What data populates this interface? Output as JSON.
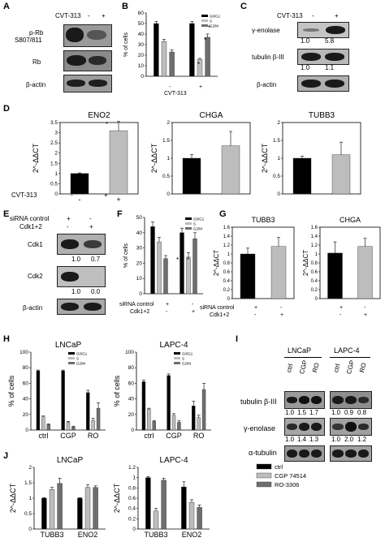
{
  "panels": {
    "A": {
      "letter": "A",
      "treatment": "CVT-313",
      "signs": [
        "-",
        "+"
      ],
      "blots": [
        "p-Rb",
        "S807/811",
        "Rb",
        "β-actin"
      ]
    },
    "B": {
      "letter": "B",
      "treatment": "CVT-313",
      "signs": [
        "-",
        "+"
      ],
      "stars": [
        "*",
        "*",
        "*"
      ]
    },
    "C": {
      "letter": "C",
      "treatment": "CVT-313",
      "signs": [
        "-",
        "+"
      ],
      "blots": [
        "γ-enolase",
        "tubulin β-III",
        "β-actin"
      ],
      "enolase_values": [
        "1.0",
        "5.8"
      ],
      "tubulin_values": [
        "1.0",
        "1.1"
      ]
    },
    "D": {
      "letter": "D",
      "treatment": "CVT-313",
      "signs": [
        "-",
        "+"
      ],
      "star": "*"
    },
    "E": {
      "letter": "E",
      "rows": [
        "siRNA control",
        "Cdk1+2"
      ],
      "row1_signs": [
        "+",
        "-"
      ],
      "row2_signs": [
        "-",
        "+"
      ],
      "blots": [
        "Cdk1",
        "Cdk2",
        "β-actin"
      ],
      "cdk1_values": [
        "1.0",
        "0.7"
      ],
      "cdk2_values": [
        "1.0",
        "0.0"
      ]
    },
    "F": {
      "letter": "F",
      "rows": [
        "siRNA control",
        "Cdk1+2"
      ],
      "row1_signs": [
        "+",
        "-"
      ],
      "row2_signs": [
        "-",
        "+"
      ],
      "stars": [
        "*",
        "*"
      ]
    },
    "G": {
      "letter": "G",
      "rows": [
        "siRNA control",
        "Cdk1+2"
      ],
      "row1_signs": [
        "+",
        "-"
      ],
      "row2_signs": [
        "-",
        "+"
      ]
    },
    "H": {
      "letter": "H"
    },
    "I": {
      "letter": "I",
      "cells": [
        "LNCaP",
        "LAPC-4"
      ],
      "lanes": [
        "ctrl",
        "CGP",
        "RO"
      ],
      "blots": [
        "tubulin β-III",
        "γ-enolase",
        "α-tubulin"
      ],
      "lncap_tubulin": [
        "1.0",
        "1.5",
        "1.7"
      ],
      "lapc_tubulin": [
        "1.0",
        "0.9",
        "0.8"
      ],
      "lncap_enolase": [
        "1.0",
        "1.4",
        "1.3"
      ],
      "lapc_enolase": [
        "1.0",
        "2.0",
        "1.2"
      ]
    },
    "J": {
      "letter": "J"
    }
  },
  "chart_data": [
    {
      "id": "B",
      "type": "bar",
      "ylabel": "% of cells",
      "ylim": [
        0,
        60
      ],
      "yticks": [
        "0",
        "10",
        "20",
        "30",
        "40",
        "50",
        "60"
      ],
      "categories": [
        "-",
        "+"
      ],
      "series": [
        {
          "name": "G0/G1",
          "values": [
            50,
            50
          ],
          "errors": [
            2,
            2
          ]
        },
        {
          "name": "S",
          "values": [
            33,
            16
          ],
          "errors": [
            2,
            1
          ]
        },
        {
          "name": "G2/M",
          "values": [
            23,
            37
          ],
          "errors": [
            2,
            3
          ]
        }
      ],
      "xlabel": "CVT-313",
      "legend": "top-right",
      "colors": [
        "#000000",
        "#bdbdbd",
        "#6e6e6e"
      ]
    },
    {
      "id": "D1",
      "type": "bar",
      "title": "ENO2",
      "ylabel": "2^-ΔΔCT",
      "ylim": [
        0,
        3.5
      ],
      "yticks": [
        "0",
        "0.5",
        "1",
        "1.5",
        "2",
        "2.5",
        "3",
        "3.5"
      ],
      "categories": [
        "-",
        "+"
      ],
      "series": [
        {
          "values": [
            1.0,
            3.1
          ],
          "errors": [
            0.03,
            0.45
          ]
        }
      ],
      "colors": [
        "#000000",
        "#bdbdbd"
      ]
    },
    {
      "id": "D2",
      "type": "bar",
      "title": "CHGA",
      "ylabel": "2^-ΔΔCT",
      "ylim": [
        0,
        2
      ],
      "yticks": [
        "0",
        "0.5",
        "1",
        "1.5",
        "2"
      ],
      "categories": [
        "-",
        "+"
      ],
      "series": [
        {
          "values": [
            1.0,
            1.35
          ],
          "errors": [
            0.1,
            0.4
          ]
        }
      ],
      "colors": [
        "#000000",
        "#bdbdbd"
      ]
    },
    {
      "id": "D3",
      "type": "bar",
      "title": "TUBB3",
      "ylabel": "2^-ΔΔCT",
      "ylim": [
        0,
        2
      ],
      "yticks": [
        "0",
        "0.5",
        "1",
        "1.5",
        "2"
      ],
      "categories": [
        "-",
        "+"
      ],
      "series": [
        {
          "values": [
            1.0,
            1.1
          ],
          "errors": [
            0.06,
            0.35
          ]
        }
      ],
      "colors": [
        "#000000",
        "#bdbdbd"
      ]
    },
    {
      "id": "F",
      "type": "bar",
      "ylabel": "% of cells",
      "ylim": [
        0,
        50
      ],
      "yticks": [
        "0",
        "10",
        "20",
        "30",
        "40",
        "50"
      ],
      "categories": [
        "+ / -",
        "- / +"
      ],
      "series": [
        {
          "name": "G0/G1",
          "values": [
            44,
            40
          ],
          "errors": [
            3,
            3
          ]
        },
        {
          "name": "S",
          "values": [
            34,
            24
          ],
          "errors": [
            3,
            3
          ]
        },
        {
          "name": "G2/M",
          "values": [
            23,
            36
          ],
          "errors": [
            2,
            4
          ]
        }
      ],
      "legend": "top-right",
      "colors": [
        "#000000",
        "#bdbdbd",
        "#6e6e6e"
      ]
    },
    {
      "id": "G1",
      "type": "bar",
      "title": "TUBB3",
      "ylabel": "2^-ΔΔCT",
      "ylim": [
        0,
        1.6
      ],
      "yticks": [
        "0",
        "0.2",
        "0.4",
        "0.6",
        "0.8",
        "1",
        "1.2",
        "1.4",
        "1.6"
      ],
      "categories": [
        "+ / -",
        "- / +"
      ],
      "series": [
        {
          "values": [
            1.0,
            1.17
          ],
          "errors": [
            0.13,
            0.2
          ]
        }
      ],
      "colors": [
        "#000000",
        "#bdbdbd"
      ]
    },
    {
      "id": "G2",
      "type": "bar",
      "title": "CHGA",
      "ylabel": "2^-ΔΔCT",
      "ylim": [
        0,
        1.6
      ],
      "yticks": [
        "0",
        "0.2",
        "0.4",
        "0.6",
        "0.8",
        "1",
        "1.2",
        "1.4",
        "1.6"
      ],
      "categories": [
        "+ / -",
        "- / +"
      ],
      "series": [
        {
          "values": [
            1.02,
            1.17
          ],
          "errors": [
            0.25,
            0.18
          ]
        }
      ],
      "colors": [
        "#000000",
        "#bdbdbd"
      ]
    },
    {
      "id": "H1",
      "type": "bar",
      "title": "LNCaP",
      "ylabel": "% of cells",
      "ylim": [
        0,
        100
      ],
      "yticks": [
        "0",
        "20",
        "40",
        "60",
        "80",
        "100"
      ],
      "categories": [
        "ctrl",
        "CGP",
        "RO"
      ],
      "series": [
        {
          "name": "G0/G1",
          "values": [
            76,
            76,
            48
          ],
          "errors": [
            1,
            1,
            3
          ]
        },
        {
          "name": "S",
          "values": [
            17,
            10,
            12
          ],
          "errors": [
            1,
            1,
            3
          ]
        },
        {
          "name": "G2/M",
          "values": [
            7,
            4,
            28
          ],
          "errors": [
            1,
            1,
            7
          ]
        }
      ],
      "legend": "top-right",
      "colors": [
        "#000000",
        "#bdbdbd",
        "#6e6e6e"
      ]
    },
    {
      "id": "H2",
      "type": "bar",
      "title": "LAPC-4",
      "ylabel": "% of cells",
      "ylim": [
        0,
        100
      ],
      "yticks": [
        "0",
        "20",
        "40",
        "60",
        "80",
        "100"
      ],
      "categories": [
        "ctrl",
        "CGP",
        "RO"
      ],
      "series": [
        {
          "name": "G0/G1",
          "values": [
            62,
            70,
            31
          ],
          "errors": [
            2,
            2,
            6
          ]
        },
        {
          "name": "S",
          "values": [
            27,
            19,
            16
          ],
          "errors": [
            1,
            2,
            3
          ]
        },
        {
          "name": "G2/M",
          "values": [
            11,
            10,
            52
          ],
          "errors": [
            1,
            2,
            8
          ]
        }
      ],
      "legend": "top-right",
      "colors": [
        "#000000",
        "#bdbdbd",
        "#6e6e6e"
      ]
    },
    {
      "id": "J1",
      "type": "bar",
      "title": "LNCaP",
      "ylabel": "2^-ΔΔCT",
      "ylim": [
        0,
        2
      ],
      "yticks": [
        "0",
        "0.5",
        "1",
        "1.5",
        "2"
      ],
      "categories": [
        "TUBB3",
        "ENO2"
      ],
      "series": [
        {
          "name": "ctrl",
          "values": [
            1.0,
            1.0
          ],
          "errors": [
            0.02,
            0.02
          ]
        },
        {
          "name": "CGP 74514",
          "values": [
            1.28,
            1.35
          ],
          "errors": [
            0.07,
            0.08
          ]
        },
        {
          "name": "RO-3306",
          "values": [
            1.48,
            1.35
          ],
          "errors": [
            0.17,
            0.05
          ]
        }
      ],
      "colors": [
        "#000000",
        "#bdbdbd",
        "#6e6e6e"
      ]
    },
    {
      "id": "J2",
      "type": "bar",
      "title": "LAPC-4",
      "ylabel": "2^-ΔΔCT",
      "ylim": [
        0,
        1.2
      ],
      "yticks": [
        "0",
        "0.2",
        "0.4",
        "0.6",
        "0.8",
        "1",
        "1.2"
      ],
      "categories": [
        "TUBB3",
        "ENO2"
      ],
      "series": [
        {
          "name": "ctrl",
          "values": [
            1.0,
            0.82
          ],
          "errors": [
            0.02,
            0.1
          ]
        },
        {
          "name": "CGP 74514",
          "values": [
            0.35,
            0.52
          ],
          "errors": [
            0.05,
            0.05
          ]
        },
        {
          "name": "RO-3306",
          "values": [
            0.95,
            0.42
          ],
          "errors": [
            0.04,
            0.05
          ]
        }
      ],
      "legend": "right",
      "colors": [
        "#000000",
        "#bdbdbd",
        "#6e6e6e"
      ]
    }
  ]
}
